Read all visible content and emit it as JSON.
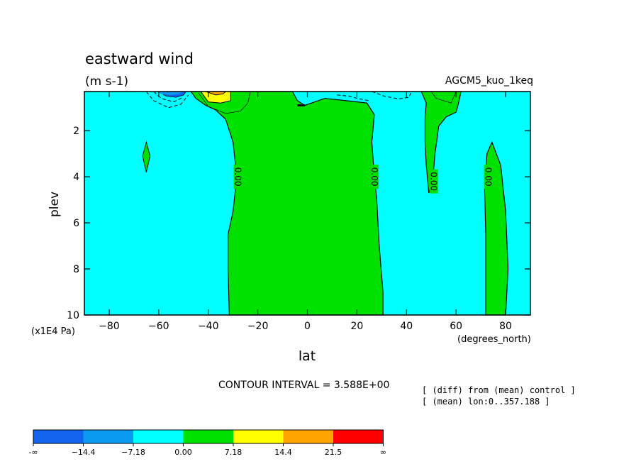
{
  "chart_data": {
    "type": "heatmap",
    "title": "eastward wind",
    "units": "(m s-1)",
    "experiment": "AGCM5_kuo_1keq",
    "xlabel": "lat",
    "x_units": "(degrees_north)",
    "ylabel": "plev",
    "y_units": "(x1E4 Pa)",
    "xlim": [
      -90,
      90
    ],
    "ylim": [
      10,
      0
    ],
    "x_ticks": [
      -80,
      -60,
      -40,
      -20,
      0,
      20,
      40,
      60,
      80
    ],
    "y_ticks": [
      2,
      4,
      6,
      8,
      10
    ],
    "contour_interval_text": "CONTOUR INTERVAL = 3.588E+00",
    "notes": [
      "[ (diff) from (mean) control ]",
      "[ (mean) lon:0..357.188 ]"
    ],
    "contour_labels": [
      {
        "text": "0.00",
        "lat": -28,
        "plev": 4.0
      },
      {
        "text": "0.00",
        "lat": 27,
        "plev": 4.0
      },
      {
        "text": "0.00",
        "lat": 51,
        "plev": 4.2
      },
      {
        "text": "0.00",
        "lat": 73,
        "plev": 4.0
      }
    ],
    "colorbar": {
      "labels": [
        "-∞",
        "−14.4",
        "−7.18",
        "0.00",
        "7.18",
        "14.4",
        "21.5",
        "∞"
      ],
      "colors": [
        "#1464f0",
        "#0a9bf0",
        "#00ffff",
        "#00e100",
        "#ffff00",
        "#ffa500",
        "#ff0000"
      ]
    },
    "regions": [
      {
        "color": "#00ffff",
        "lat_range": [
          -90,
          90
        ],
        "plev_range": [
          0.3,
          10
        ],
        "note": "background, between -7.18 and 0.00"
      },
      {
        "color": "#00e100",
        "lat_range": [
          -32,
          31
        ],
        "plev_range": [
          0.3,
          10
        ],
        "note": "central positive band"
      },
      {
        "color": "#00e100",
        "lat_range": [
          -67,
          -64
        ],
        "plev_range": [
          2.5,
          3.8
        ],
        "note": "small positive patch"
      },
      {
        "color": "#00e100",
        "lat_range": [
          46,
          60
        ],
        "plev_range": [
          0.3,
          4.7
        ],
        "note": "upper positive tongue"
      },
      {
        "color": "#00e100",
        "lat_range": [
          72,
          82
        ],
        "plev_range": [
          2.5,
          10
        ],
        "note": "high-latitude positive column"
      },
      {
        "color": "#ffff00",
        "lat_range": [
          -43,
          -30
        ],
        "plev_range": [
          0.3,
          0.8
        ],
        "note": "upper maximum"
      },
      {
        "color": "#ffa500",
        "lat_range": [
          -41,
          -33
        ],
        "plev_range": [
          0.3,
          0.45
        ],
        "note": "upper maximum core"
      },
      {
        "color": "#1464f0",
        "lat_range": [
          -60,
          -49
        ],
        "plev_range": [
          0.3,
          0.55
        ],
        "note": "upper minimum"
      }
    ]
  }
}
